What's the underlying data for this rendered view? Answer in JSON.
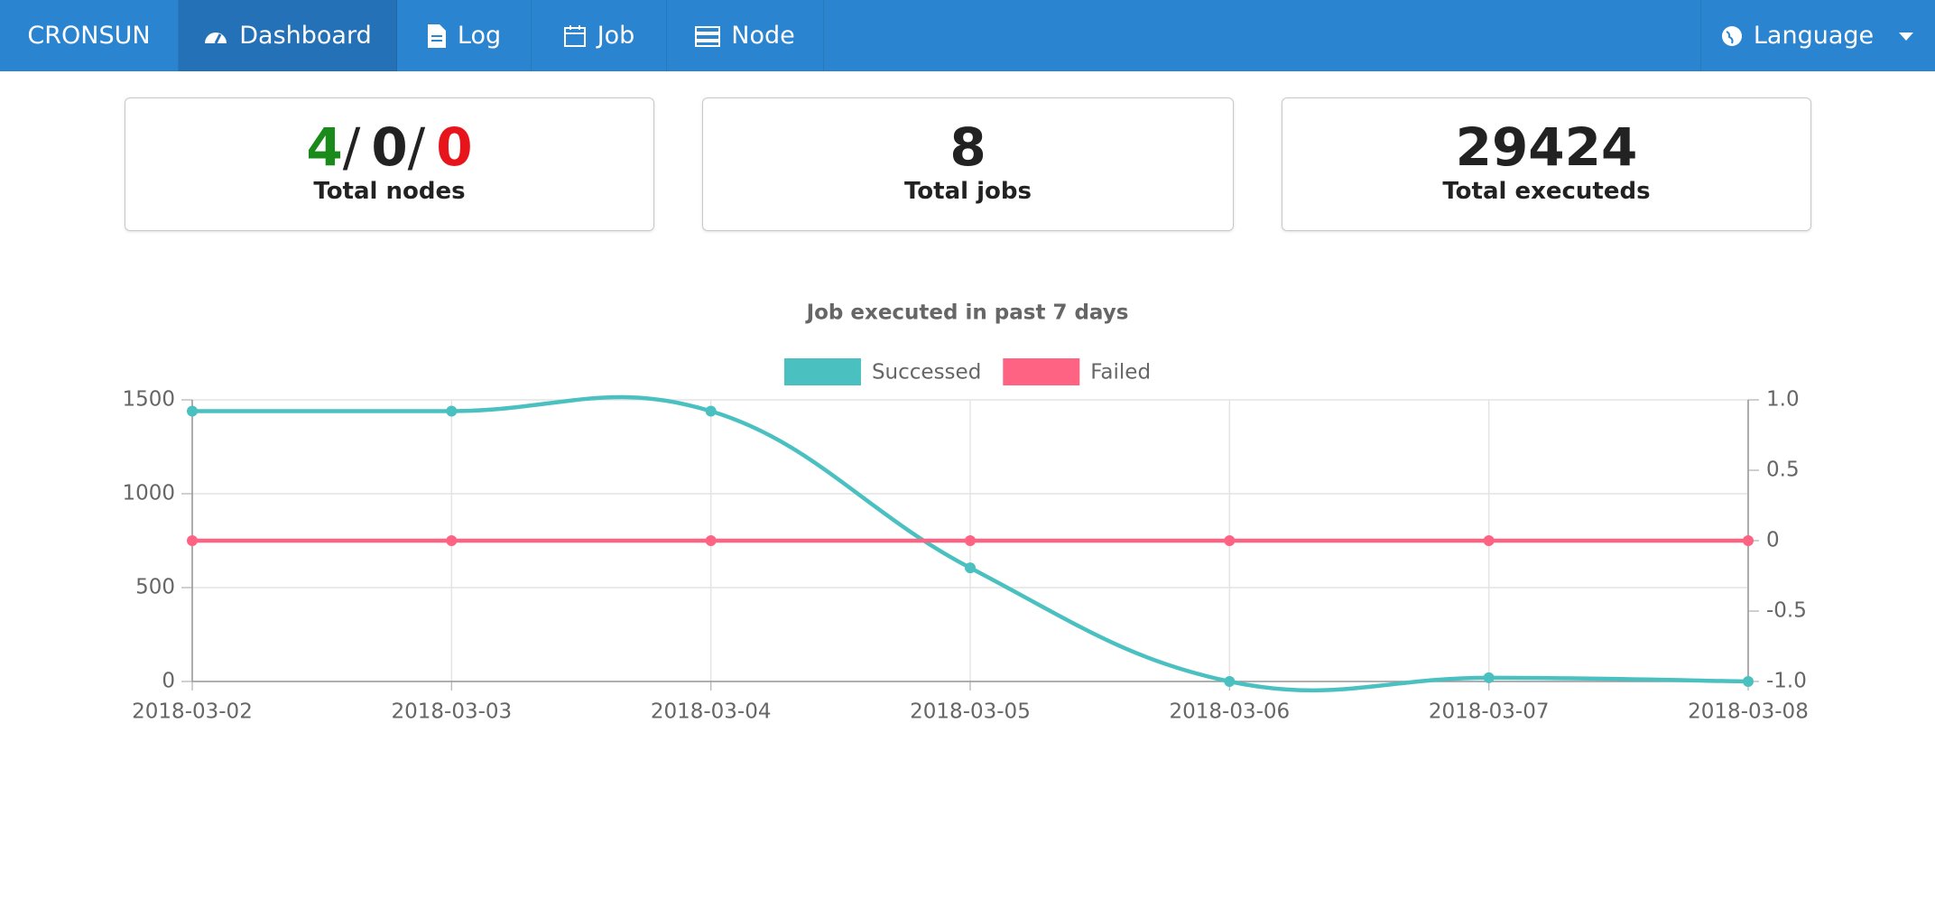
{
  "nav": {
    "brand": "CRONSUN",
    "items": [
      "Dashboard",
      "Log",
      "Job",
      "Node"
    ],
    "language": "Language"
  },
  "cards": [
    {
      "values": [
        4,
        0,
        0
      ],
      "separator": "/",
      "label": "Total nodes"
    },
    {
      "value": 8,
      "label": "Total jobs"
    },
    {
      "value": 29424,
      "label": "Total executeds"
    }
  ],
  "chart_data": {
    "type": "line",
    "title": "Job executed in past 7 days",
    "categories": [
      "2018-03-02",
      "2018-03-03",
      "2018-03-04",
      "2018-03-05",
      "2018-03-06",
      "2018-03-07",
      "2018-03-08"
    ],
    "series": [
      {
        "name": "Successed",
        "color": "#4bc0c0",
        "values": [
          1440,
          1440,
          1440,
          605,
          0,
          20,
          0
        ]
      },
      {
        "name": "Failed",
        "color": "#ff6384",
        "axis": "y2",
        "values": [
          0,
          0,
          0,
          0,
          0,
          0,
          0
        ]
      }
    ],
    "ylim": [
      0,
      1500
    ],
    "yticks": [
      0,
      500,
      1000,
      1500
    ],
    "y2lim": [
      -1,
      1
    ],
    "y2ticks": [
      {
        "value": -1,
        "label": "-1.0"
      },
      -0.5,
      0,
      0.5,
      {
        "value": 1,
        "label": "1.0"
      }
    ],
    "grid": true,
    "legend": "top"
  }
}
